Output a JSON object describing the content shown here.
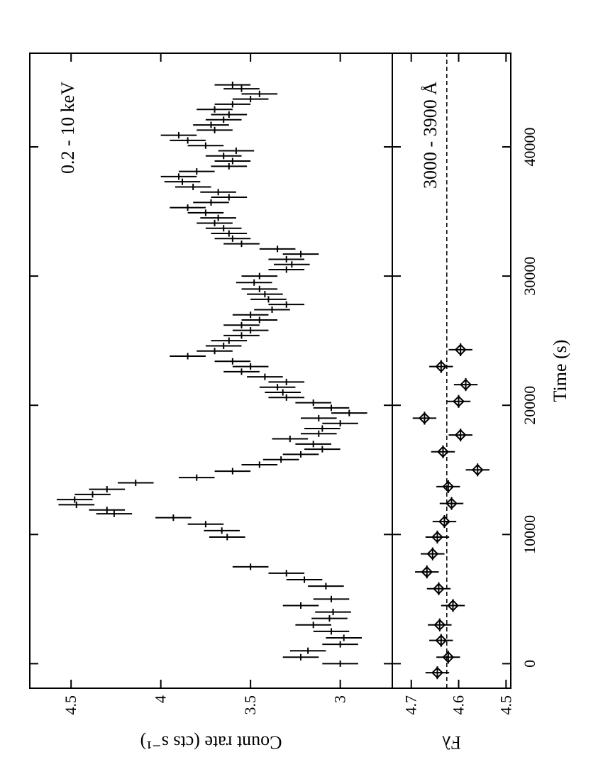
{
  "chart_data": [
    {
      "type": "errorbar",
      "ylabel": "Count rate (cts s⁻¹)",
      "annotation": "0.2 - 10 keV",
      "marker": "cross",
      "color": "#000000",
      "x": [
        0,
        500,
        1000,
        1500,
        2000,
        2500,
        3000,
        3500,
        4000,
        4500,
        5000,
        6000,
        6500,
        7000,
        7500,
        9800,
        10300,
        10800,
        11300,
        11600,
        11900,
        12300,
        12700,
        13100,
        13500,
        14000,
        14400,
        14900,
        15400,
        15800,
        16200,
        16600,
        17000,
        17400,
        17800,
        18200,
        18600,
        19000,
        19400,
        19800,
        20200,
        20600,
        21000,
        21400,
        21800,
        22200,
        22600,
        23000,
        23400,
        23800,
        24200,
        24600,
        25000,
        25400,
        25800,
        26200,
        26600,
        27000,
        27400,
        27800,
        28200,
        28600,
        29000,
        29500,
        30000,
        30500,
        30900,
        31300,
        31700,
        32100,
        32500,
        32900,
        33300,
        33700,
        34100,
        34500,
        34900,
        35300,
        35700,
        36100,
        36500,
        36900,
        37300,
        37700,
        38100,
        38500,
        38900,
        39300,
        39700,
        40100,
        40500,
        40900,
        41300,
        41700,
        42100,
        42500,
        42900,
        43300,
        43700,
        44100,
        44500,
        44800
      ],
      "values": [
        3.0,
        3.22,
        3.18,
        3.0,
        2.98,
        3.05,
        3.15,
        3.06,
        3.04,
        3.22,
        3.05,
        3.08,
        3.2,
        3.3,
        3.5,
        3.63,
        3.66,
        3.75,
        3.93,
        4.26,
        4.3,
        4.47,
        4.48,
        4.38,
        4.3,
        4.14,
        3.8,
        3.6,
        3.45,
        3.33,
        3.22,
        3.1,
        3.15,
        3.28,
        3.12,
        3.1,
        3.0,
        3.12,
        2.95,
        3.05,
        3.15,
        3.3,
        3.32,
        3.35,
        3.3,
        3.42,
        3.55,
        3.5,
        3.6,
        3.85,
        3.7,
        3.65,
        3.62,
        3.55,
        3.5,
        3.55,
        3.45,
        3.5,
        3.38,
        3.3,
        3.4,
        3.42,
        3.45,
        3.48,
        3.45,
        3.3,
        3.27,
        3.3,
        3.22,
        3.35,
        3.55,
        3.6,
        3.62,
        3.65,
        3.7,
        3.68,
        3.75,
        3.85,
        3.72,
        3.62,
        3.68,
        3.82,
        3.88,
        3.9,
        3.8,
        3.62,
        3.6,
        3.65,
        3.58,
        3.75,
        3.85,
        3.9,
        3.7,
        3.72,
        3.65,
        3.62,
        3.7,
        3.6,
        3.5,
        3.45,
        3.55,
        3.6
      ],
      "yerr": 0.1,
      "xerr": 250,
      "xlim": [
        -1900,
        47250
      ],
      "xticks": [
        0,
        10000,
        20000,
        30000,
        40000
      ],
      "ylim": [
        2.71,
        4.73
      ],
      "yticks": [
        3,
        3.5,
        4,
        4.5
      ]
    },
    {
      "type": "errorbar",
      "xlabel": "Time (s)",
      "ylabel": "Fλ",
      "annotation": "3000 - 3900 Å",
      "marker": "diamond",
      "color": "#000000",
      "x": [
        -700,
        500,
        1800,
        3000,
        4500,
        5800,
        7100,
        8500,
        9800,
        11000,
        12400,
        13700,
        15000,
        16400,
        17700,
        19000,
        20300,
        21600,
        23000,
        24300
      ],
      "values": [
        4.645,
        4.622,
        4.637,
        4.64,
        4.612,
        4.642,
        4.667,
        4.655,
        4.645,
        4.63,
        4.615,
        4.622,
        4.56,
        4.633,
        4.596,
        4.672,
        4.6,
        4.585,
        4.637,
        4.596
      ],
      "yerr": 0.025,
      "xerr": 500,
      "reference_line": 4.625,
      "xlim": [
        -1900,
        47250
      ],
      "xticks": [
        0,
        10000,
        20000,
        30000,
        40000
      ],
      "ylim": [
        4.49,
        4.74
      ],
      "yticks": [
        4.5,
        4.6,
        4.7
      ]
    }
  ]
}
